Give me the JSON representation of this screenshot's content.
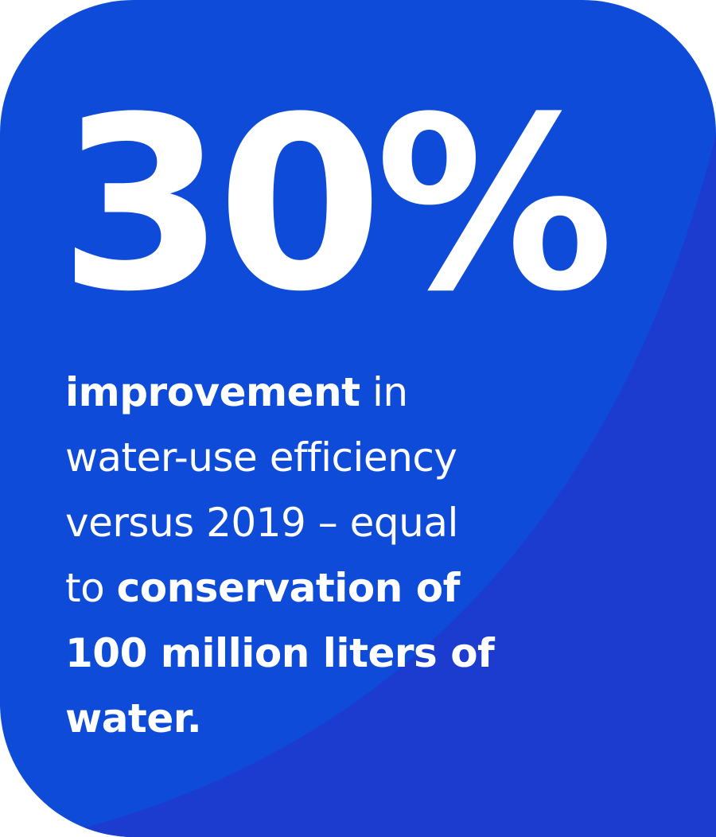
{
  "colors": {
    "card_background": "#0e4bd8",
    "card_shade": "#1b3ccf",
    "text": "#ffffff"
  },
  "stat": {
    "value": "30%"
  },
  "caption": {
    "line1_bold": "improvement",
    "line1_rest": " in",
    "line2": "water-use efficiency",
    "line3": "versus 2019 – equal",
    "line4_normal": "to ",
    "line4_bold": "conservation of",
    "line5_bold": "100 million liters of",
    "line6_bold": "water."
  }
}
